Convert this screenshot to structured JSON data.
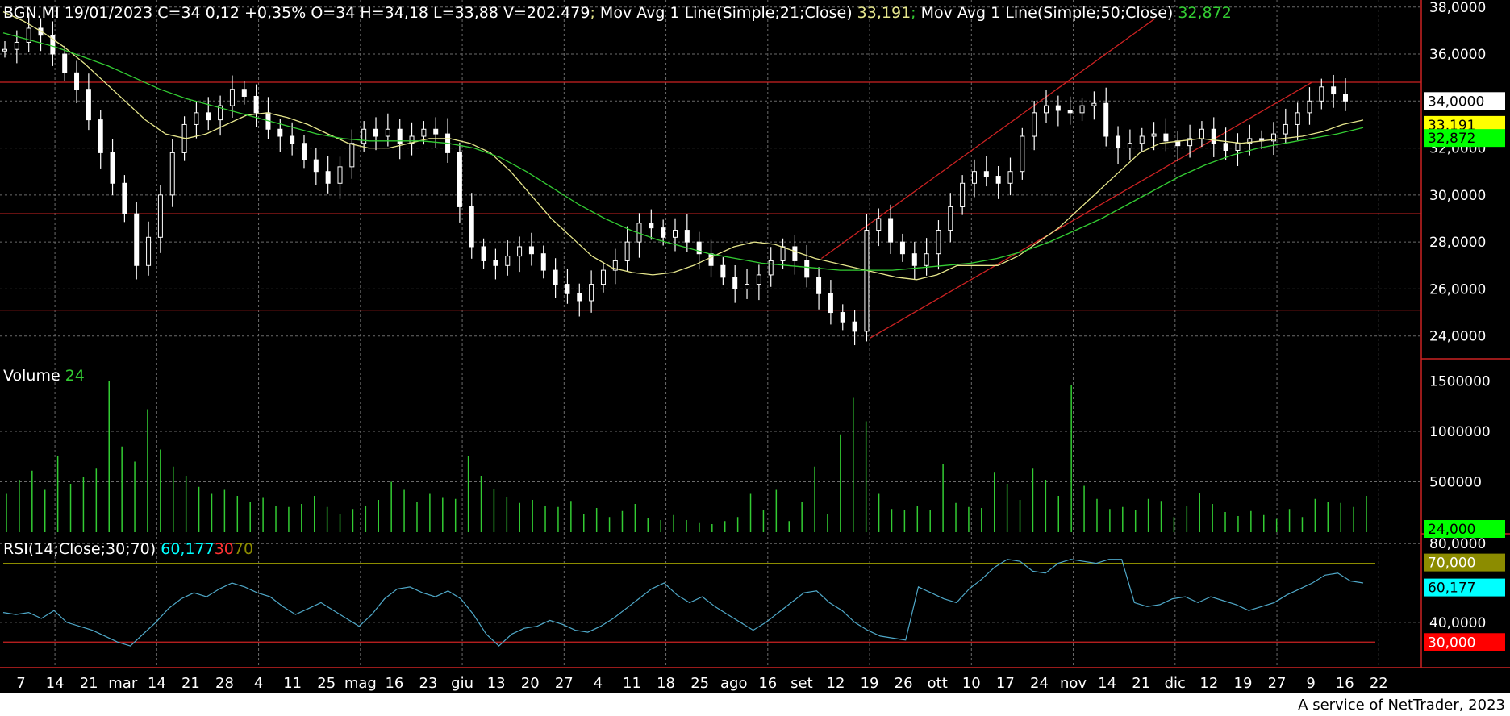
{
  "header": {
    "ticker_line": "BGN.MI 19/01/2023 C=34 0,12 +0,35% O=34 H=34,18 L=33,88 V=202.479",
    "sep1": ";",
    "ma21_label": " Mov Avg 1 Line(Simple;21;Close) ",
    "ma21_value": "33,191",
    "sep2": ";",
    "ma50_label": " Mov Avg 1 Line(Simple;50;Close) ",
    "ma50_value": "32,872",
    "volume_label": "Volume ",
    "volume_value": "24",
    "rsi_label": "RSI(14;Close;30;70) ",
    "rsi_value": "60,177",
    "rsi_lower": "30",
    "rsi_upper": "70"
  },
  "colors": {
    "background": "#000000",
    "candle": "#ffffff",
    "ma21": "#e6e68c",
    "ma50": "#33cc33",
    "volume": "#33cc33",
    "rsi": "#4fa8c8",
    "support": "#cc2222",
    "grid": "#6b6b6b",
    "rsi_value": "#00ffff",
    "upper_band": "#8c8c00",
    "lower_band": "#ff0000"
  },
  "footer": {
    "credit": "A service of NetTrader, 2023"
  },
  "chart_data": [
    {
      "type": "candlestick",
      "title": "BGN.MI",
      "y_ticks": [
        "38,0000",
        "36,0000",
        "34,0000",
        "32,0000",
        "30,0000",
        "28,0000",
        "26,0000",
        "24,0000"
      ],
      "ylim": [
        23.2,
        38.3
      ],
      "x_ticks": [
        "7",
        "14",
        "21",
        "mar",
        "14",
        "21",
        "28",
        "4",
        "11",
        "25",
        "mag",
        "16",
        "23",
        "giu",
        "13",
        "20",
        "27",
        "4",
        "11",
        "18",
        "25",
        "ago",
        "16",
        "set",
        "12",
        "19",
        "26",
        "ott",
        "10",
        "17",
        "24",
        "nov",
        "14",
        "21",
        "dic",
        "12",
        "19",
        "27",
        "9",
        "16",
        "22"
      ],
      "horizontal_lines": [
        34.8,
        29.2,
        25.1
      ],
      "last_value_tags": [
        {
          "label": "34,0000",
          "value": 34.0
        },
        {
          "label": "33,191",
          "value": 33.191
        },
        {
          "label": "32,872",
          "value": 32.872
        }
      ],
      "channel_lines": [
        {
          "from": [
            0.577,
            27.3
          ],
          "to": [
            0.812,
            37.5
          ]
        },
        {
          "from": [
            0.611,
            23.9
          ],
          "to": [
            0.923,
            34.8
          ]
        }
      ],
      "close_series_approx": [
        36.2,
        36.5,
        37.1,
        36.8,
        36.0,
        35.2,
        34.5,
        33.2,
        31.8,
        30.5,
        29.2,
        27.0,
        28.2,
        30.0,
        31.8,
        33.0,
        33.5,
        33.2,
        33.8,
        34.5,
        34.2,
        33.5,
        32.8,
        32.5,
        32.2,
        31.5,
        31.0,
        30.5,
        31.2,
        32.2,
        32.8,
        32.5,
        32.8,
        32.2,
        32.5,
        32.8,
        32.6,
        31.8,
        29.5,
        27.8,
        27.2,
        27.0,
        27.4,
        27.8,
        27.5,
        26.8,
        26.2,
        25.8,
        25.5,
        26.2,
        26.8,
        27.2,
        28.0,
        28.8,
        28.6,
        28.2,
        28.5,
        28.0,
        27.5,
        27.0,
        26.5,
        26.0,
        26.2,
        26.6,
        27.2,
        27.8,
        27.2,
        26.5,
        25.8,
        25.0,
        24.6,
        24.2,
        28.5,
        29.0,
        28.0,
        27.5,
        27.0,
        27.5,
        28.5,
        29.5,
        30.5,
        31.0,
        30.8,
        30.5,
        31.0,
        32.5,
        33.5,
        33.8,
        33.6,
        33.5,
        33.8,
        33.9,
        32.5,
        32.0,
        32.2,
        32.5,
        32.6,
        32.3,
        32.1,
        32.4,
        32.8,
        32.2,
        31.9,
        32.2,
        32.4,
        32.3,
        32.6,
        33.0,
        33.5,
        34.0,
        34.6,
        34.3,
        34.0
      ],
      "ma21_approx": [
        37.8,
        37.4,
        36.9,
        36.3,
        35.6,
        34.8,
        34.0,
        33.2,
        32.6,
        32.4,
        32.6,
        33.0,
        33.4,
        33.5,
        33.3,
        33.0,
        32.6,
        32.2,
        32.0,
        32.0,
        32.2,
        32.4,
        32.4,
        32.2,
        31.8,
        31.0,
        30.0,
        29.0,
        28.2,
        27.4,
        26.9,
        26.7,
        26.6,
        26.7,
        27.0,
        27.4,
        27.8,
        28.0,
        27.9,
        27.6,
        27.3,
        27.1,
        26.9,
        26.7,
        26.5,
        26.4,
        26.6,
        27.0,
        27.0,
        27.0,
        27.4,
        28.0,
        28.6,
        29.4,
        30.2,
        31.0,
        31.8,
        32.2,
        32.3,
        32.4,
        32.3,
        32.2,
        32.3,
        32.4,
        32.5,
        32.7,
        33.0,
        33.19
      ],
      "ma50_approx": [
        36.9,
        36.6,
        36.3,
        35.9,
        35.5,
        35.0,
        34.5,
        34.1,
        33.8,
        33.5,
        33.2,
        32.9,
        32.6,
        32.4,
        32.3,
        32.3,
        32.3,
        32.2,
        32.0,
        31.6,
        31.0,
        30.3,
        29.6,
        29.0,
        28.5,
        28.1,
        27.8,
        27.5,
        27.3,
        27.1,
        27.0,
        26.9,
        26.8,
        26.8,
        26.8,
        26.9,
        27.0,
        27.1,
        27.3,
        27.6,
        28.0,
        28.5,
        29.0,
        29.6,
        30.2,
        30.8,
        31.3,
        31.7,
        32.0,
        32.2,
        32.4,
        32.6,
        32.87
      ]
    },
    {
      "type": "bar",
      "title": "Volume",
      "y_ticks": [
        "1500000",
        "1000000",
        "500000"
      ],
      "ylim": [
        0,
        1600000
      ],
      "last_value_tag": {
        "label": "24,000",
        "value": 24000
      },
      "values_approx": [
        380000,
        520000,
        610000,
        420000,
        760000,
        480000,
        550000,
        630000,
        1500000,
        850000,
        700000,
        1220000,
        820000,
        650000,
        560000,
        450000,
        380000,
        420000,
        360000,
        300000,
        340000,
        260000,
        250000,
        280000,
        360000,
        250000,
        180000,
        230000,
        260000,
        320000,
        500000,
        420000,
        300000,
        380000,
        340000,
        330000,
        760000,
        560000,
        430000,
        350000,
        290000,
        320000,
        260000,
        250000,
        310000,
        180000,
        240000,
        150000,
        210000,
        280000,
        140000,
        120000,
        170000,
        120000,
        90000,
        80000,
        110000,
        150000,
        380000,
        220000,
        420000,
        110000,
        300000,
        650000,
        180000,
        970000,
        1340000,
        1100000,
        380000,
        230000,
        220000,
        260000,
        220000,
        680000,
        290000,
        250000,
        240000,
        590000,
        480000,
        320000,
        630000,
        520000,
        360000,
        1460000,
        460000,
        330000,
        230000,
        250000,
        220000,
        330000,
        310000,
        150000,
        260000,
        390000,
        280000,
        200000,
        160000,
        210000,
        170000,
        130000,
        230000,
        150000,
        330000,
        300000,
        290000,
        250000,
        360000
      ]
    },
    {
      "type": "line",
      "title": "RSI(14;Close;30;70)",
      "y_ticks": [
        "80,0000",
        "40,0000"
      ],
      "ylim": [
        17,
        85
      ],
      "upper_band": 70,
      "lower_band": 30,
      "last_value_tags": [
        {
          "label": "70,000",
          "value": 70
        },
        {
          "label": "60,177",
          "value": 60.177
        },
        {
          "label": "30,000",
          "value": 30
        }
      ],
      "values_approx": [
        45,
        44,
        45,
        42,
        46,
        40,
        38,
        36,
        33,
        30,
        28,
        34,
        40,
        47,
        52,
        55,
        53,
        57,
        60,
        58,
        55,
        53,
        48,
        44,
        47,
        50,
        46,
        42,
        38,
        44,
        52,
        57,
        58,
        55,
        53,
        56,
        52,
        44,
        34,
        28,
        34,
        37,
        38,
        41,
        39,
        36,
        35,
        38,
        42,
        47,
        52,
        57,
        60,
        54,
        50,
        53,
        48,
        44,
        40,
        36,
        40,
        45,
        50,
        55,
        56,
        50,
        46,
        40,
        36,
        33,
        32,
        31,
        58,
        55,
        52,
        50,
        57,
        62,
        68,
        72,
        71,
        66,
        65,
        70,
        72,
        71,
        70,
        72,
        72,
        50,
        48,
        49,
        52,
        53,
        50,
        53,
        51,
        49,
        46,
        48,
        50,
        54,
        57,
        60,
        64,
        65,
        61,
        60
      ]
    }
  ]
}
